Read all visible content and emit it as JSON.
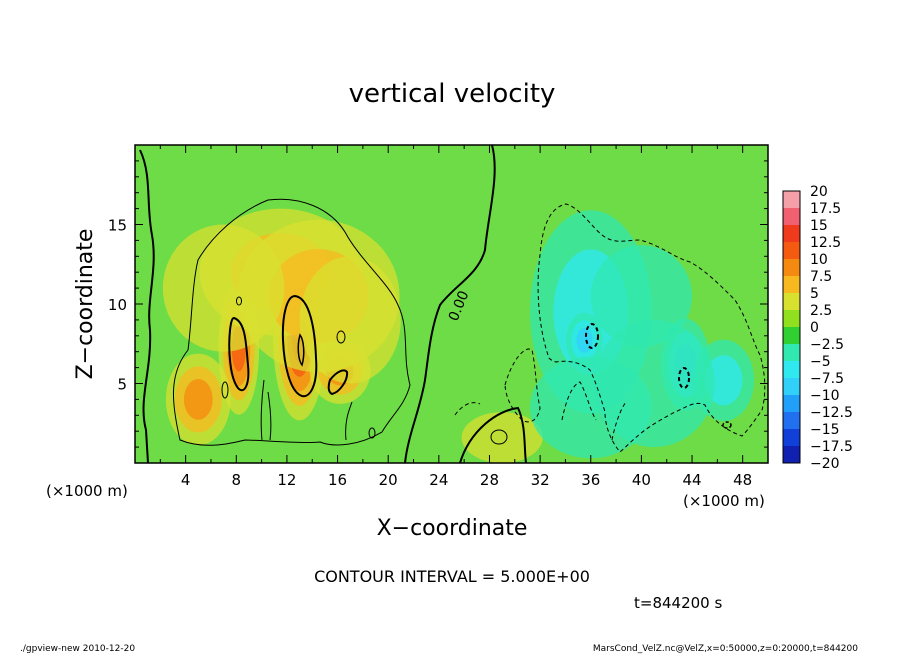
{
  "chart_data": {
    "type": "heatmap",
    "title": "vertical velocity",
    "xlabel": "X−coordinate",
    "ylabel": "Z−coordinate",
    "x_unit_left": "(×1000 m)",
    "x_unit_right": "(×1000 m)",
    "xlim": [
      0,
      50
    ],
    "ylim": [
      0,
      20
    ],
    "x_ticks": [
      4,
      8,
      12,
      16,
      20,
      24,
      28,
      32,
      36,
      40,
      44,
      48
    ],
    "y_ticks": [
      5,
      10,
      15
    ],
    "contour_interval_text": "CONTOUR INTERVAL = 5.000E+00",
    "contour_label": "0.00",
    "time_text": "t=844200 s",
    "footer_left": "./gpview-new  2010-12-20",
    "footer_right": "MarsCond_VelZ.nc@VelZ,x=0:50000,z=0:20000,t=844200",
    "colorbar": {
      "levels": [
        "20",
        "17.5",
        "15",
        "12.5",
        "10",
        "7.5",
        "5",
        "2.5",
        "0",
        "−2.5",
        "−5",
        "−7.5",
        "−10",
        "−12.5",
        "−15",
        "−17.5",
        "−20"
      ],
      "colors": [
        "#f4a0a8",
        "#f06070",
        "#f03a1c",
        "#f45a10",
        "#f48a10",
        "#f8b820",
        "#d8e030",
        "#90e020",
        "#30d030",
        "#30e8b0",
        "#30e8f0",
        "#30d0f8",
        "#20a0f8",
        "#2070f0",
        "#1040d8",
        "#1020b0",
        "#7020b8"
      ]
    },
    "field_background": "#6edc46",
    "features": [
      {
        "x": 8.2,
        "z": 7.2,
        "value": 10.5,
        "sx": 1.0,
        "sz": 2.6
      },
      {
        "x": 13.0,
        "z": 7.8,
        "value": 13.5,
        "sx": 1.3,
        "sz": 3.2
      },
      {
        "x": 16.2,
        "z": 5.8,
        "value": 8.5,
        "sx": 1.5,
        "sz": 1.3
      },
      {
        "x": 5.0,
        "z": 4.0,
        "value": 8.0,
        "sx": 1.6,
        "sz": 1.8
      },
      {
        "x": 11.5,
        "z": 12.0,
        "value": 6.0,
        "sx": 4.0,
        "sz": 2.5
      },
      {
        "x": 14.5,
        "z": 10.5,
        "value": 5.0,
        "sx": 4.0,
        "sz": 3.0
      },
      {
        "x": 7.0,
        "z": 11.0,
        "value": 4.5,
        "sx": 3.0,
        "sz": 2.5
      },
      {
        "x": 17.0,
        "z": 9.0,
        "value": 4.0,
        "sx": 2.5,
        "sz": 2.5
      },
      {
        "x": 29.0,
        "z": 1.6,
        "value": 3.5,
        "sx": 2.0,
        "sz": 1.0
      },
      {
        "x": 36.0,
        "z": 9.5,
        "value": -6.5,
        "sx": 3.0,
        "sz": 4.0
      },
      {
        "x": 35.5,
        "z": 7.7,
        "value": -9.0,
        "sx": 0.9,
        "sz": 1.1
      },
      {
        "x": 43.5,
        "z": 6.2,
        "value": -8.5,
        "sx": 1.2,
        "sz": 1.8
      },
      {
        "x": 46.5,
        "z": 5.2,
        "value": -5.0,
        "sx": 1.5,
        "sz": 1.6
      },
      {
        "x": 40.0,
        "z": 10.5,
        "value": -4.0,
        "sx": 2.5,
        "sz": 2.0
      },
      {
        "x": 36.0,
        "z": 3.5,
        "value": -3.5,
        "sx": 3.0,
        "sz": 2.0
      },
      {
        "x": 41.0,
        "z": 5.0,
        "value": -3.0,
        "sx": 3.0,
        "sz": 2.5
      }
    ]
  }
}
